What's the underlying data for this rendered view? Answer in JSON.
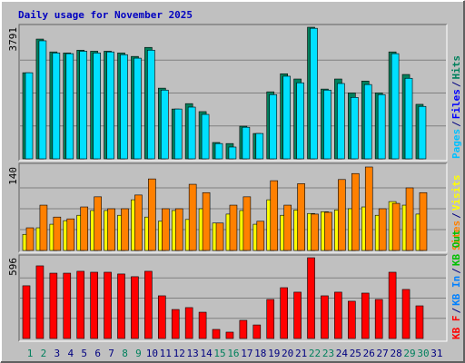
{
  "title": "Daily usage for November 2025",
  "chart_data": [
    {
      "type": "bar",
      "ylim": [
        0,
        3791
      ],
      "yticks": [
        3791
      ],
      "label_parts": [
        {
          "text": "Pages",
          "color": "#00c0ff"
        },
        {
          "text": "Files",
          "color": "#0000ff"
        },
        {
          "text": "Hits",
          "color": "#00805c"
        }
      ],
      "series": [
        {
          "name": "Hits",
          "color": "#00805c",
          "values": [
            2480,
            3450,
            3080,
            3050,
            3130,
            3100,
            3100,
            3050,
            2950,
            3210,
            2036,
            1435,
            1590,
            1360,
            470,
            440,
            940,
            730,
            1930,
            2450,
            2300,
            3791,
            2010,
            2300,
            1900,
            2240,
            1900,
            3080,
            2430,
            1570,
            null
          ]
        },
        {
          "name": "Pages",
          "color": "#00e0ff",
          "values": [
            2480,
            3400,
            3050,
            3030,
            3100,
            3050,
            3080,
            3000,
            2900,
            3130,
            1980,
            1435,
            1490,
            1280,
            440,
            340,
            910,
            730,
            1850,
            2380,
            2190,
            3760,
            1980,
            2170,
            1770,
            2140,
            1850,
            3030,
            2320,
            1510,
            null
          ]
        }
      ]
    },
    {
      "type": "bar",
      "ylim": [
        0,
        140
      ],
      "yticks": [
        140
      ],
      "label_parts": [
        {
          "text": "Sites",
          "color": "#ff8000"
        },
        {
          "text": "Visits",
          "color": "#ffff00"
        }
      ],
      "series": [
        {
          "name": "Visits",
          "color": "#ffff00",
          "values": [
            27,
            38,
            44,
            50,
            59,
            67,
            67,
            59,
            85,
            56,
            49,
            67,
            52,
            70,
            46,
            61,
            67,
            44,
            85,
            59,
            68,
            62,
            65,
            68,
            70,
            73,
            59,
            82,
            76,
            61,
            null
          ]
        },
        {
          "name": "Sites",
          "color": "#ff8000",
          "values": [
            38,
            76,
            56,
            53,
            73,
            90,
            70,
            70,
            93,
            120,
            70,
            70,
            111,
            97,
            46,
            76,
            90,
            49,
            117,
            76,
            112,
            61,
            64,
            119,
            129,
            140,
            70,
            79,
            105,
            97,
            null
          ]
        }
      ]
    },
    {
      "type": "bar",
      "ylim": [
        0,
        596
      ],
      "yticks": [
        596
      ],
      "label_parts": [
        {
          "text": "KB F",
          "color": "#ff0000"
        },
        {
          "text": "KB In",
          "color": "#0080ff"
        },
        {
          "text": "KB Out",
          "color": "#00c000"
        }
      ],
      "series": [
        {
          "name": "KB F",
          "color": "#ff0000",
          "values": [
            389,
            536,
            482,
            482,
            496,
            489,
            489,
            476,
            456,
            496,
            315,
            214,
            228,
            194,
            67,
            47,
            134,
            100,
            288,
            375,
            342,
            596,
            315,
            342,
            275,
            335,
            288,
            489,
            362,
            241,
            null
          ]
        }
      ],
      "categories": [
        "1",
        "2",
        "3",
        "4",
        "5",
        "6",
        "7",
        "8",
        "9",
        "10",
        "11",
        "12",
        "13",
        "14",
        "15",
        "16",
        "17",
        "18",
        "19",
        "20",
        "21",
        "22",
        "23",
        "24",
        "25",
        "26",
        "27",
        "28",
        "29",
        "30",
        "31"
      ],
      "category_color": "#000080",
      "weekend_color": "#00805c",
      "weekend": [
        0,
        1,
        7,
        8,
        14,
        15,
        21,
        22,
        28,
        29
      ]
    }
  ]
}
